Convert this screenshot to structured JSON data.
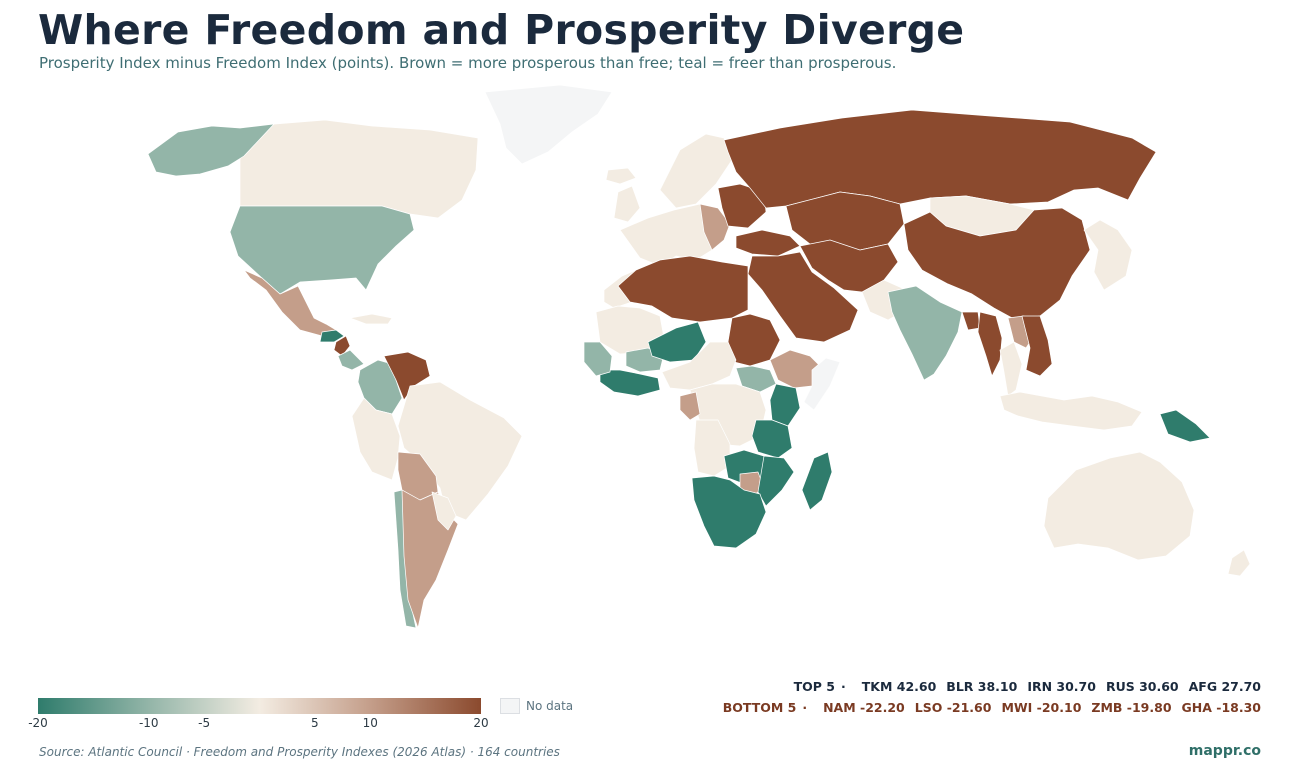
{
  "title": "Where Freedom and Prosperity Diverge",
  "subtitle": "Prosperity Index minus Freedom Index (points). Brown = more prosperous than free; teal = freer than prosperous.",
  "colors": {
    "strong_positive": "#8b4a2e",
    "mid_positive": "#c49e8a",
    "neutral": "#f3ece2",
    "mid_negative": "#93b5a8",
    "strong_negative": "#2f7c6c",
    "no_data": "#f4f5f6",
    "brand": "#2f6f68"
  },
  "legend": {
    "min": -20,
    "max": 20,
    "ticks": [
      "-20",
      "-10",
      "-5",
      "5",
      "10",
      "20"
    ],
    "tick_values": [
      -20,
      -10,
      -5,
      5,
      10,
      20
    ],
    "no_data_label": "No data"
  },
  "top5": {
    "label": "TOP 5",
    "items": [
      "TKM 42.60",
      "BLR 38.10",
      "IRN 30.70",
      "RUS 30.60",
      "AFG 27.70"
    ]
  },
  "bottom5": {
    "label": "BOTTOM 5",
    "items": [
      "NAM -22.20",
      "LSO -21.60",
      "MWI -20.10",
      "ZMB -19.80",
      "GHA -18.30"
    ]
  },
  "source": "Source: Atlantic Council · Freedom and Prosperity Indexes (2026 Atlas) · 164 countries",
  "brand": "mappr.co",
  "regions": [
    {
      "name": "greenland",
      "class": "no_data"
    },
    {
      "name": "canada",
      "class": "neutral"
    },
    {
      "name": "alaska",
      "class": "mid_negative"
    },
    {
      "name": "usa",
      "class": "mid_negative"
    },
    {
      "name": "mexico",
      "class": "mid_positive"
    },
    {
      "name": "guatemala-honduras",
      "class": "strong_negative"
    },
    {
      "name": "nicaragua",
      "class": "strong_positive"
    },
    {
      "name": "costa-rica-panama",
      "class": "mid_negative"
    },
    {
      "name": "cuba",
      "class": "neutral"
    },
    {
      "name": "colombia",
      "class": "mid_negative"
    },
    {
      "name": "venezuela",
      "class": "strong_positive"
    },
    {
      "name": "brazil",
      "class": "neutral"
    },
    {
      "name": "peru-ecuador",
      "class": "neutral"
    },
    {
      "name": "bolivia",
      "class": "mid_positive"
    },
    {
      "name": "chile",
      "class": "mid_negative"
    },
    {
      "name": "argentina",
      "class": "mid_positive"
    },
    {
      "name": "paraguay-uruguay",
      "class": "neutral"
    },
    {
      "name": "iceland",
      "class": "neutral"
    },
    {
      "name": "uk-ireland",
      "class": "neutral"
    },
    {
      "name": "scandinavia",
      "class": "neutral"
    },
    {
      "name": "western-europe",
      "class": "neutral"
    },
    {
      "name": "balkans",
      "class": "mid_positive"
    },
    {
      "name": "belarus-ukraine",
      "class": "strong_positive"
    },
    {
      "name": "turkey",
      "class": "strong_positive"
    },
    {
      "name": "russia",
      "class": "strong_positive"
    },
    {
      "name": "central-asia",
      "class": "strong_positive"
    },
    {
      "name": "mongolia",
      "class": "neutral"
    },
    {
      "name": "china",
      "class": "strong_positive"
    },
    {
      "name": "korea-japan",
      "class": "neutral"
    },
    {
      "name": "middle-east",
      "class": "strong_positive"
    },
    {
      "name": "iran-afghanistan",
      "class": "strong_positive"
    },
    {
      "name": "pakistan",
      "class": "neutral"
    },
    {
      "name": "india",
      "class": "mid_negative"
    },
    {
      "name": "bangladesh",
      "class": "strong_positive"
    },
    {
      "name": "myanmar",
      "class": "strong_positive"
    },
    {
      "name": "thailand",
      "class": "neutral"
    },
    {
      "name": "laos",
      "class": "mid_positive"
    },
    {
      "name": "vietnam-cambodia",
      "class": "strong_positive"
    },
    {
      "name": "maritime-se-asia",
      "class": "neutral"
    },
    {
      "name": "papua-new-guinea",
      "class": "strong_negative"
    },
    {
      "name": "australia",
      "class": "neutral"
    },
    {
      "name": "new-zealand",
      "class": "neutral"
    },
    {
      "name": "morocco",
      "class": "neutral"
    },
    {
      "name": "north-africa",
      "class": "strong_positive"
    },
    {
      "name": "sudan",
      "class": "strong_positive"
    },
    {
      "name": "mauritania-mali",
      "class": "neutral"
    },
    {
      "name": "burkina-faso",
      "class": "mid_negative"
    },
    {
      "name": "niger",
      "class": "strong_negative"
    },
    {
      "name": "west-africa-coast",
      "class": "strong_negative"
    },
    {
      "name": "senegal-guinea",
      "class": "mid_negative"
    },
    {
      "name": "nigeria-chad",
      "class": "neutral"
    },
    {
      "name": "ethiopia",
      "class": "mid_positive"
    },
    {
      "name": "somalia",
      "class": "no_data"
    },
    {
      "name": "south-sudan",
      "class": "mid_negative"
    },
    {
      "name": "central-africa",
      "class": "neutral"
    },
    {
      "name": "gabon-congo",
      "class": "mid_positive"
    },
    {
      "name": "kenya",
      "class": "strong_negative"
    },
    {
      "name": "tanzania",
      "class": "strong_negative"
    },
    {
      "name": "angola",
      "class": "neutral"
    },
    {
      "name": "zambia-malawi",
      "class": "strong_negative"
    },
    {
      "name": "zimbabwe",
      "class": "mid_positive"
    },
    {
      "name": "mozambique",
      "class": "strong_negative"
    },
    {
      "name": "southern-africa",
      "class": "strong_negative"
    },
    {
      "name": "madagascar",
      "class": "strong_negative"
    }
  ]
}
